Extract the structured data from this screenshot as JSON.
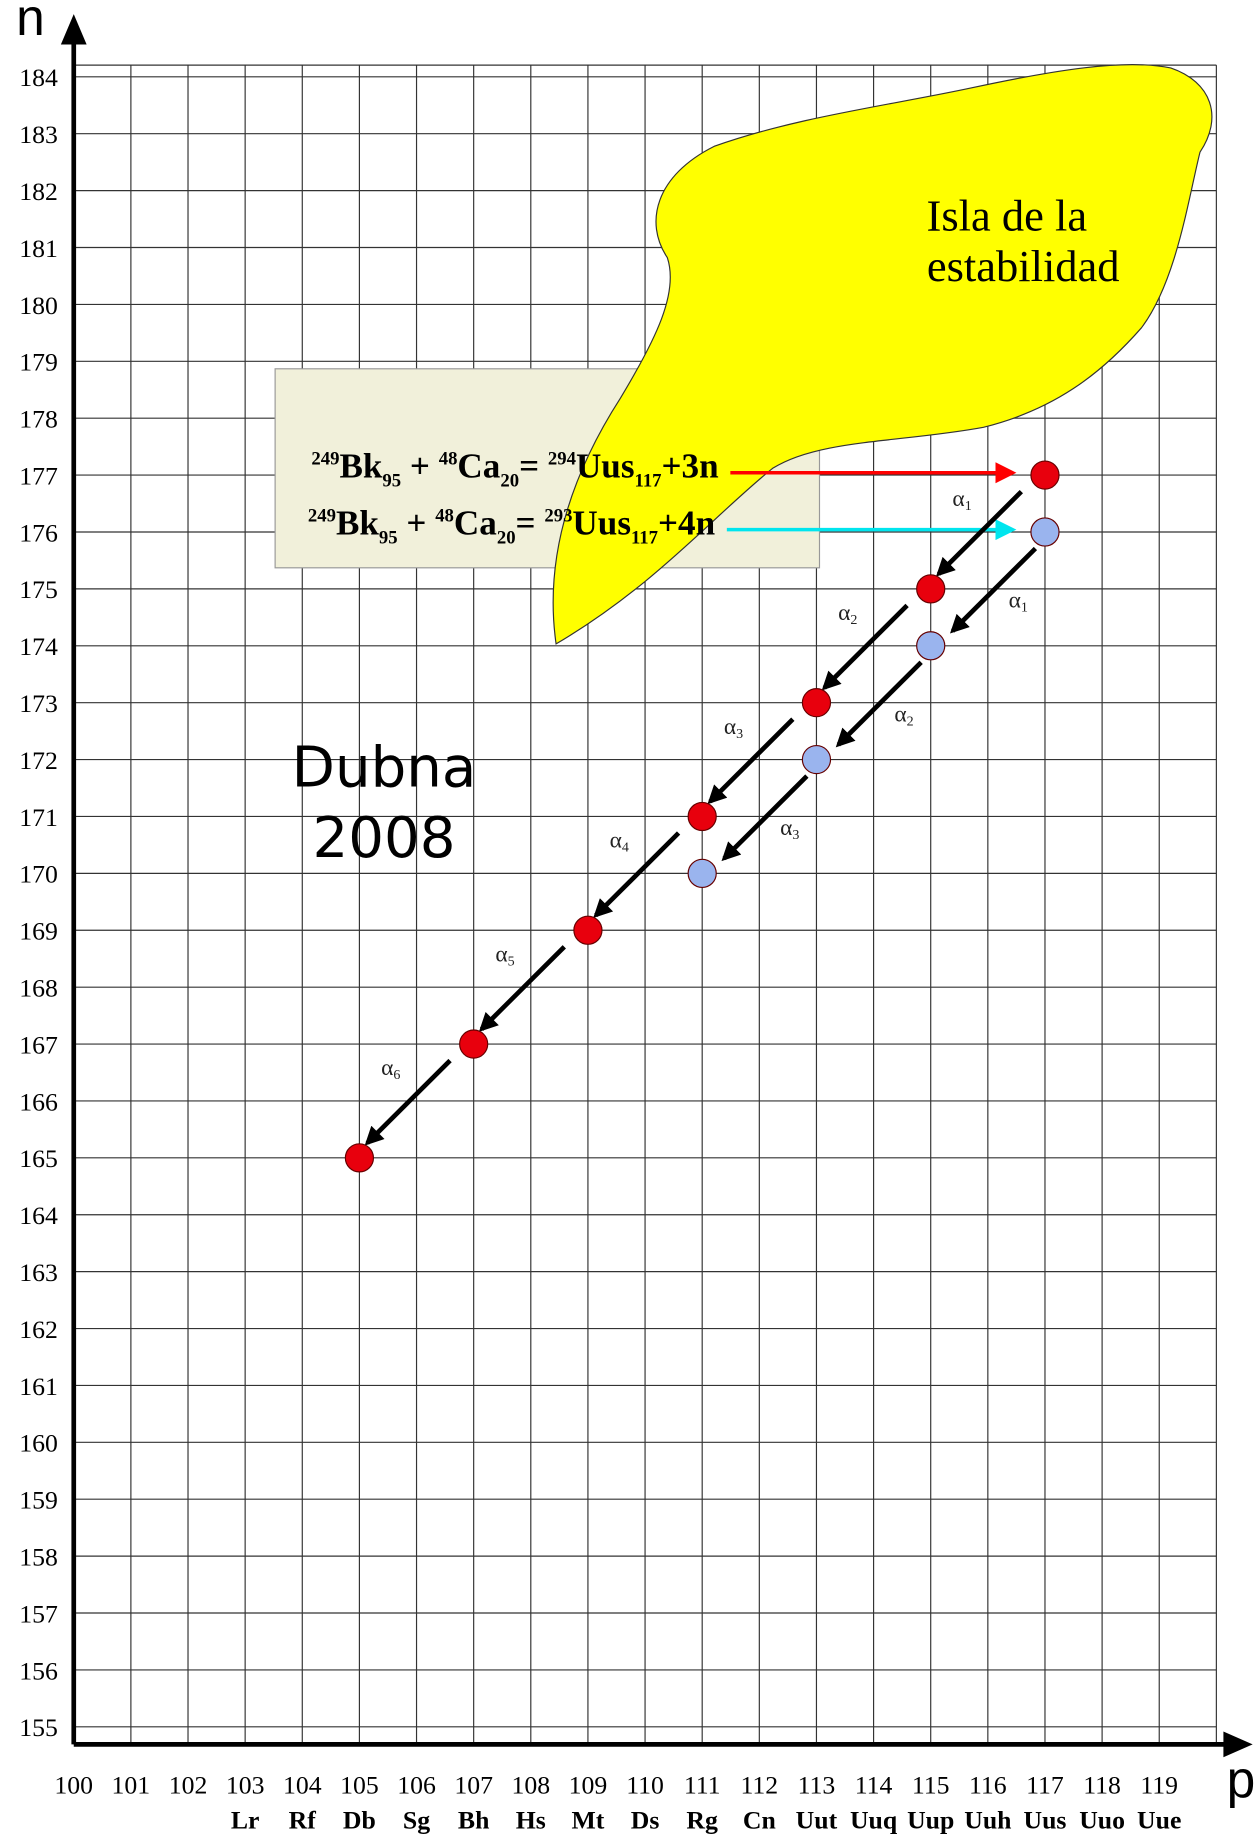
{
  "chart_data": {
    "type": "scatter",
    "x_label": "p",
    "y_label": "n",
    "xlim": [
      100,
      120
    ],
    "ylim": [
      155,
      184
    ],
    "xticks": [
      100,
      101,
      102,
      103,
      104,
      105,
      106,
      107,
      108,
      109,
      110,
      111,
      112,
      113,
      114,
      115,
      116,
      117,
      118,
      119
    ],
    "x_symbols": [
      null,
      null,
      null,
      "Lr",
      "Rf",
      "Db",
      "Sg",
      "Bh",
      "Hs",
      "Mt",
      "Ds",
      "Rg",
      "Cn",
      "Uut",
      "Uuq",
      "Uup",
      "Uuh",
      "Uus",
      "Uuo",
      "Uue"
    ],
    "yticks": [
      155,
      156,
      157,
      158,
      159,
      160,
      161,
      162,
      163,
      164,
      165,
      166,
      167,
      168,
      169,
      170,
      171,
      172,
      173,
      174,
      175,
      176,
      177,
      178,
      179,
      180,
      181,
      182,
      183,
      184
    ],
    "grid": true,
    "series": [
      {
        "color": "#e8000d",
        "x": [
          117,
          115,
          113,
          111,
          109,
          107,
          105
        ],
        "values": [
          177,
          175,
          173,
          171,
          169,
          167,
          165
        ],
        "decay_labels": [
          {
            "symbol": "α",
            "index": "1"
          },
          {
            "symbol": "α",
            "index": "2"
          },
          {
            "symbol": "α",
            "index": "3"
          },
          {
            "symbol": "α",
            "index": "4"
          },
          {
            "symbol": "α",
            "index": "5"
          },
          {
            "symbol": "α",
            "index": "6"
          }
        ]
      },
      {
        "color": "#9ab4ee",
        "x": [
          117,
          115,
          113,
          111
        ],
        "values": [
          176,
          174,
          172,
          170
        ],
        "decay_labels": [
          {
            "symbol": "α",
            "index": "1"
          },
          {
            "symbol": "α",
            "index": "2"
          },
          {
            "symbol": "α",
            "index": "3"
          }
        ]
      }
    ],
    "reactions": [
      {
        "arrow_color": "#ff0000",
        "parts": [
          {
            "text": "249",
            "pos": "sup"
          },
          {
            "text": "Bk",
            "pos": "base"
          },
          {
            "text": "95",
            "pos": "sub"
          },
          {
            "text": " + ",
            "pos": "base"
          },
          {
            "text": "48",
            "pos": "sup"
          },
          {
            "text": "Ca",
            "pos": "base"
          },
          {
            "text": "20",
            "pos": "sub"
          },
          {
            "text": "= ",
            "pos": "base"
          },
          {
            "text": "294",
            "pos": "sup"
          },
          {
            "text": "Uus",
            "pos": "base"
          },
          {
            "text": "117",
            "pos": "sub"
          },
          {
            "text": "+3n",
            "pos": "base"
          }
        ]
      },
      {
        "arrow_color": "#00e5ee",
        "parts": [
          {
            "text": "249",
            "pos": "sup"
          },
          {
            "text": "Bk",
            "pos": "base"
          },
          {
            "text": "95",
            "pos": "sub"
          },
          {
            "text": " + ",
            "pos": "base"
          },
          {
            "text": "48",
            "pos": "sup"
          },
          {
            "text": "Ca",
            "pos": "base"
          },
          {
            "text": "20",
            "pos": "sub"
          },
          {
            "text": "= ",
            "pos": "base"
          },
          {
            "text": "293",
            "pos": "sup"
          },
          {
            "text": "Uus",
            "pos": "base"
          },
          {
            "text": "117",
            "pos": "sub"
          },
          {
            "text": "+4n",
            "pos": "base"
          }
        ]
      }
    ],
    "island_label": [
      "Isla de la",
      "estabilidad"
    ],
    "place_label": [
      "Dubna",
      "2008"
    ]
  }
}
